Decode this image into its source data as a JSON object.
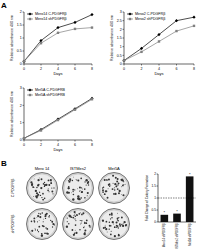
{
  "panel_labels": [
    "A",
    "B"
  ],
  "plates": {
    "columns": [
      "Mero 14",
      "ISTMes2",
      "Met5A"
    ],
    "rows": [
      "C-PDGFRβ",
      "shPDGFRβ"
    ]
  },
  "chart_data": [
    {
      "type": "line",
      "x_label": "Days",
      "y_label": "Relative absorbance 490 nm",
      "x": [
        0,
        2,
        4,
        6,
        8
      ],
      "xlim": [
        0,
        8
      ],
      "xticks": [
        0,
        2,
        4,
        6,
        8
      ],
      "ylim": [
        0,
        2
      ],
      "yticks": [
        0,
        0.5,
        1,
        1.5,
        2
      ],
      "legend": "upper left",
      "series": [
        {
          "name": "Mero14 C-PDGFRβ",
          "color": "#000000",
          "marker": "diamond",
          "values": [
            0.1,
            0.9,
            1.4,
            1.6,
            1.9
          ]
        },
        {
          "name": "Mero14 shPDGFRβ",
          "color": "#808080",
          "marker": "square",
          "values": [
            0.1,
            0.8,
            1.2,
            1.35,
            1.4
          ]
        }
      ]
    },
    {
      "type": "line",
      "x_label": "Days",
      "y_label": "Relative absorbance 490 nm",
      "x": [
        0,
        2,
        4,
        6,
        8
      ],
      "xlim": [
        0,
        8
      ],
      "xticks": [
        0,
        2,
        4,
        6,
        8
      ],
      "ylim": [
        0,
        3
      ],
      "yticks": [
        0,
        0.5,
        1,
        1.5,
        2,
        2.5,
        3
      ],
      "legend": "upper left",
      "series": [
        {
          "name": "Meso2 C-PDGFRβ",
          "color": "#000000",
          "marker": "diamond",
          "values": [
            0.2,
            0.9,
            1.7,
            2.5,
            2.7
          ]
        },
        {
          "name": "Meso2 shPDGFRβ",
          "color": "#808080",
          "marker": "square",
          "values": [
            0.2,
            0.7,
            1.3,
            1.9,
            2.2
          ]
        }
      ]
    },
    {
      "type": "line",
      "x_label": "Days",
      "y_label": "Relative absorbance 490 nm",
      "x": [
        0,
        2,
        4,
        6,
        8
      ],
      "xlim": [
        0,
        8
      ],
      "xticks": [
        0,
        2,
        4,
        6,
        8
      ],
      "ylim": [
        0,
        3
      ],
      "yticks": [
        0,
        1,
        2,
        3
      ],
      "legend": "upper left",
      "series": [
        {
          "name": "Met5A C-PDGFRB",
          "color": "#000000",
          "marker": "diamond",
          "values": [
            0.1,
            0.6,
            1.2,
            1.8,
            2.4
          ]
        },
        {
          "name": "Met5A shPDGFRB",
          "color": "#808080",
          "marker": "square",
          "values": [
            0.1,
            0.55,
            1.15,
            1.75,
            2.35
          ]
        }
      ]
    },
    {
      "type": "bar",
      "y_label": "Fold Change of Colony Formation",
      "categories": [
        "Mero14 shPDGFRβ",
        "ISTMes2 shPDGFRβ",
        "Met5A shPDGFRβ"
      ],
      "values": [
        0.3,
        0.35,
        1.9
      ],
      "color": "#111111",
      "ylim": [
        0,
        2
      ],
      "yticks": [
        0,
        0.5,
        1,
        1.5,
        2
      ],
      "reference_line": 1,
      "annotations": [
        "*",
        "*",
        "*"
      ]
    }
  ]
}
